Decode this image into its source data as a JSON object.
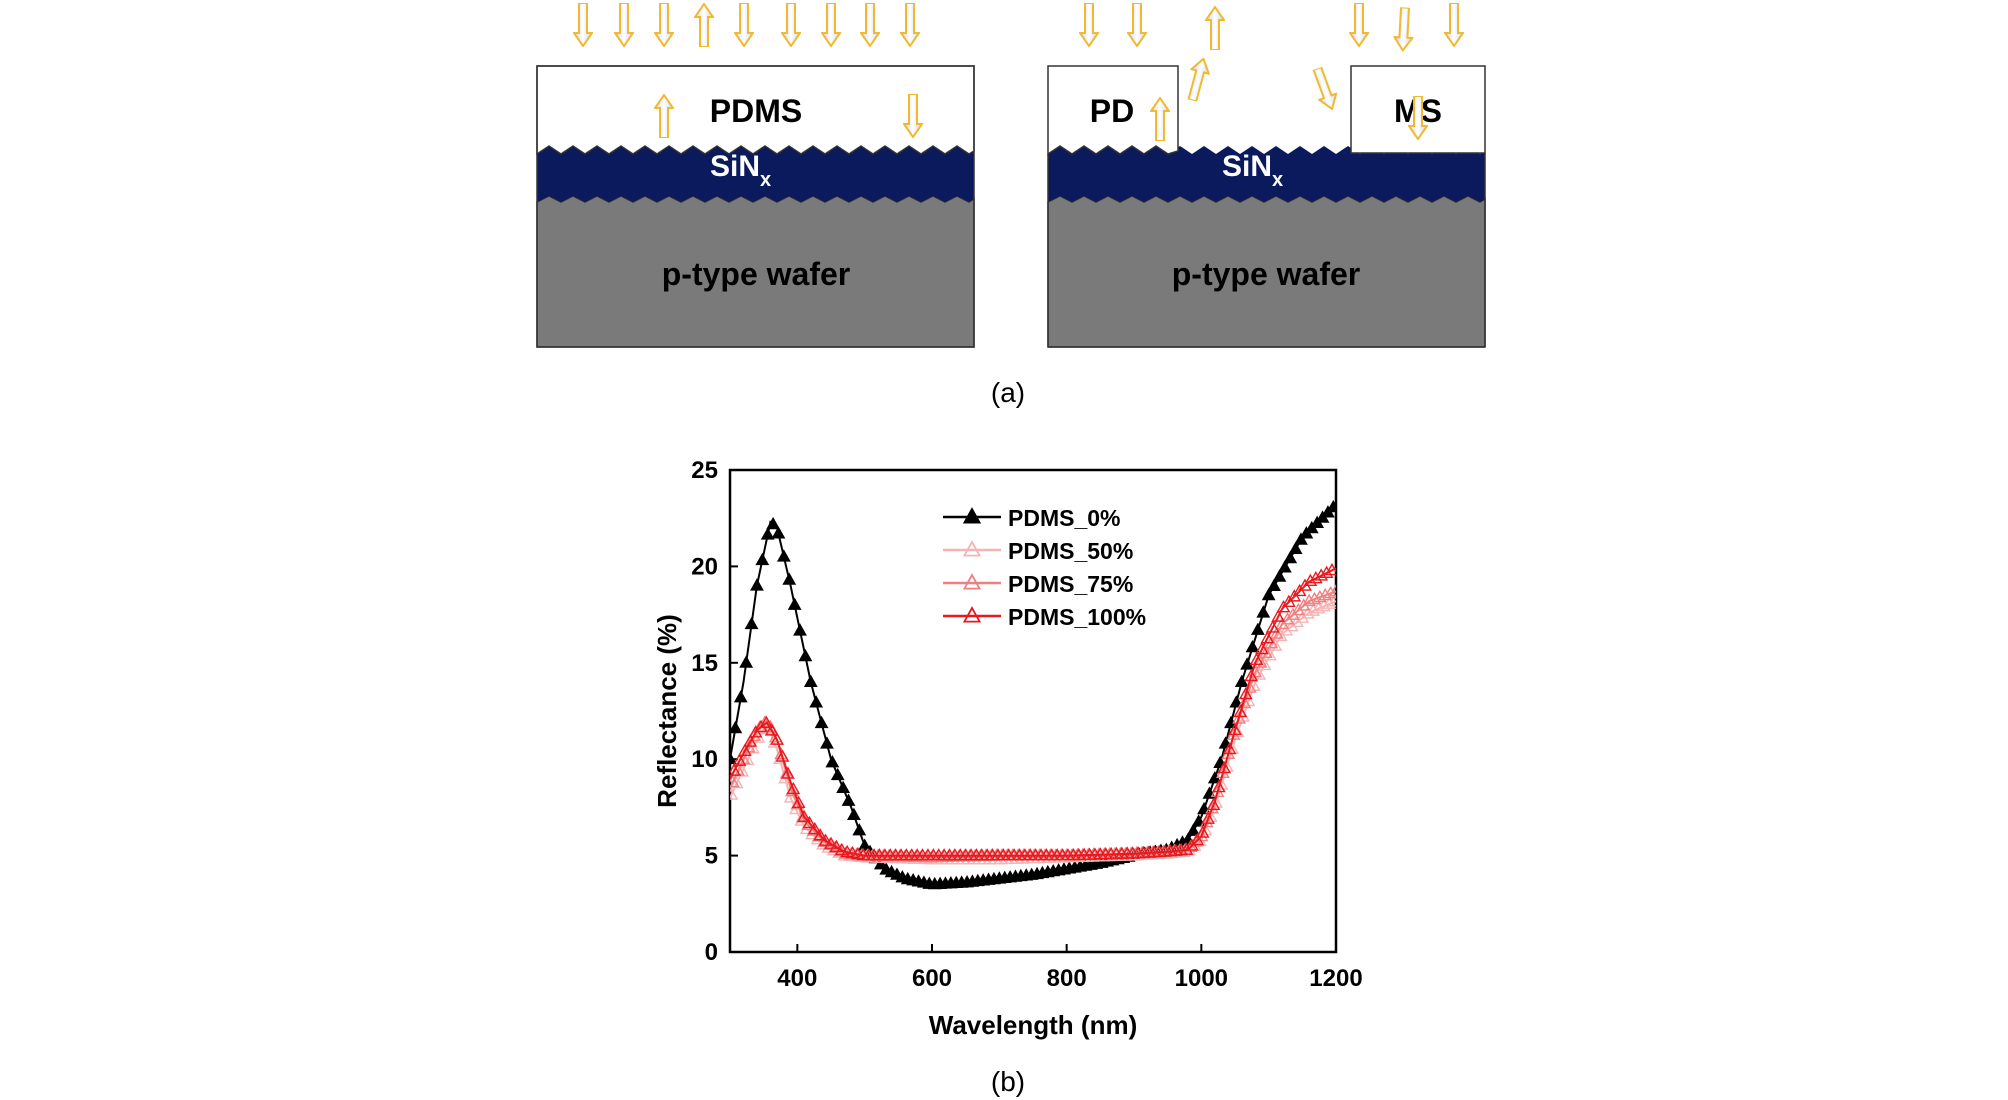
{
  "panel_a": {
    "left": {
      "top_layer": "PDMS",
      "coating": "SiN",
      "coating_sub": "x",
      "substrate": "p-type wafer"
    },
    "right": {
      "top_layer_left": "PD",
      "top_layer_right": "MS",
      "coating": "SiN",
      "coating_sub": "x",
      "substrate": "p-type wafer"
    },
    "caption": "(a)",
    "colors": {
      "coating": "#0b1a5c",
      "substrate": "#7a7a7a",
      "arrow": "#f2b830"
    }
  },
  "panel_b": {
    "caption": "(b)"
  },
  "chart_data": {
    "type": "scatter",
    "xlabel": "Wavelength (nm)",
    "ylabel": "Reflectance (%)",
    "xlim": [
      300,
      1200
    ],
    "ylim": [
      0,
      25
    ],
    "xticks": [
      400,
      600,
      800,
      1000,
      1200
    ],
    "yticks": [
      0,
      5,
      10,
      15,
      20,
      25
    ],
    "legend_position": "top-center",
    "series": [
      {
        "name": "PDMS_0%",
        "color": "#000000",
        "marker": "filled-triangle",
        "points": [
          [
            300,
            10
          ],
          [
            320,
            14
          ],
          [
            340,
            19
          ],
          [
            360,
            22.3
          ],
          [
            370,
            22
          ],
          [
            390,
            19
          ],
          [
            420,
            14
          ],
          [
            450,
            10
          ],
          [
            480,
            7.5
          ],
          [
            500,
            5.5
          ],
          [
            530,
            4.3
          ],
          [
            560,
            3.8
          ],
          [
            600,
            3.5
          ],
          [
            650,
            3.6
          ],
          [
            700,
            3.8
          ],
          [
            750,
            4
          ],
          [
            800,
            4.3
          ],
          [
            850,
            4.6
          ],
          [
            900,
            5
          ],
          [
            950,
            5.3
          ],
          [
            980,
            5.8
          ],
          [
            1000,
            7
          ],
          [
            1030,
            10
          ],
          [
            1060,
            14
          ],
          [
            1100,
            18.5
          ],
          [
            1150,
            21.5
          ],
          [
            1200,
            23.2
          ]
        ]
      },
      {
        "name": "PDMS_50%",
        "color": "#f4b4b4",
        "marker": "open-triangle",
        "points": [
          [
            300,
            8
          ],
          [
            320,
            9.5
          ],
          [
            340,
            11
          ],
          [
            355,
            11.8
          ],
          [
            370,
            10.5
          ],
          [
            390,
            8
          ],
          [
            410,
            6.5
          ],
          [
            440,
            5.5
          ],
          [
            470,
            5
          ],
          [
            500,
            4.9
          ],
          [
            600,
            4.8
          ],
          [
            700,
            4.8
          ],
          [
            800,
            4.9
          ],
          [
            900,
            5
          ],
          [
            950,
            5.1
          ],
          [
            980,
            5.2
          ],
          [
            1000,
            5.8
          ],
          [
            1020,
            7.5
          ],
          [
            1050,
            11
          ],
          [
            1080,
            14
          ],
          [
            1120,
            16.5
          ],
          [
            1160,
            17.6
          ],
          [
            1200,
            18.2
          ]
        ]
      },
      {
        "name": "PDMS_75%",
        "color": "#f08080",
        "marker": "open-triangle",
        "points": [
          [
            300,
            8.5
          ],
          [
            320,
            10
          ],
          [
            340,
            11.5
          ],
          [
            355,
            12
          ],
          [
            370,
            11
          ],
          [
            390,
            8.5
          ],
          [
            410,
            6.8
          ],
          [
            440,
            5.7
          ],
          [
            470,
            5.1
          ],
          [
            500,
            5
          ],
          [
            600,
            4.9
          ],
          [
            700,
            5
          ],
          [
            800,
            5
          ],
          [
            900,
            5.1
          ],
          [
            950,
            5.2
          ],
          [
            980,
            5.3
          ],
          [
            1000,
            6
          ],
          [
            1020,
            7.8
          ],
          [
            1050,
            11.5
          ],
          [
            1080,
            14.5
          ],
          [
            1120,
            17
          ],
          [
            1160,
            18.2
          ],
          [
            1200,
            18.7
          ]
        ]
      },
      {
        "name": "PDMS_100%",
        "color": "#e8191e",
        "marker": "open-triangle",
        "points": [
          [
            300,
            9
          ],
          [
            320,
            10.3
          ],
          [
            340,
            11.5
          ],
          [
            355,
            11.9
          ],
          [
            370,
            11
          ],
          [
            390,
            8.8
          ],
          [
            410,
            7
          ],
          [
            440,
            5.8
          ],
          [
            470,
            5.2
          ],
          [
            500,
            5
          ],
          [
            600,
            5
          ],
          [
            700,
            5
          ],
          [
            800,
            5
          ],
          [
            900,
            5.1
          ],
          [
            950,
            5.2
          ],
          [
            980,
            5.3
          ],
          [
            1000,
            6
          ],
          [
            1020,
            7.8
          ],
          [
            1050,
            11.5
          ],
          [
            1080,
            15
          ],
          [
            1120,
            17.8
          ],
          [
            1160,
            19.2
          ],
          [
            1200,
            19.9
          ]
        ]
      }
    ]
  }
}
